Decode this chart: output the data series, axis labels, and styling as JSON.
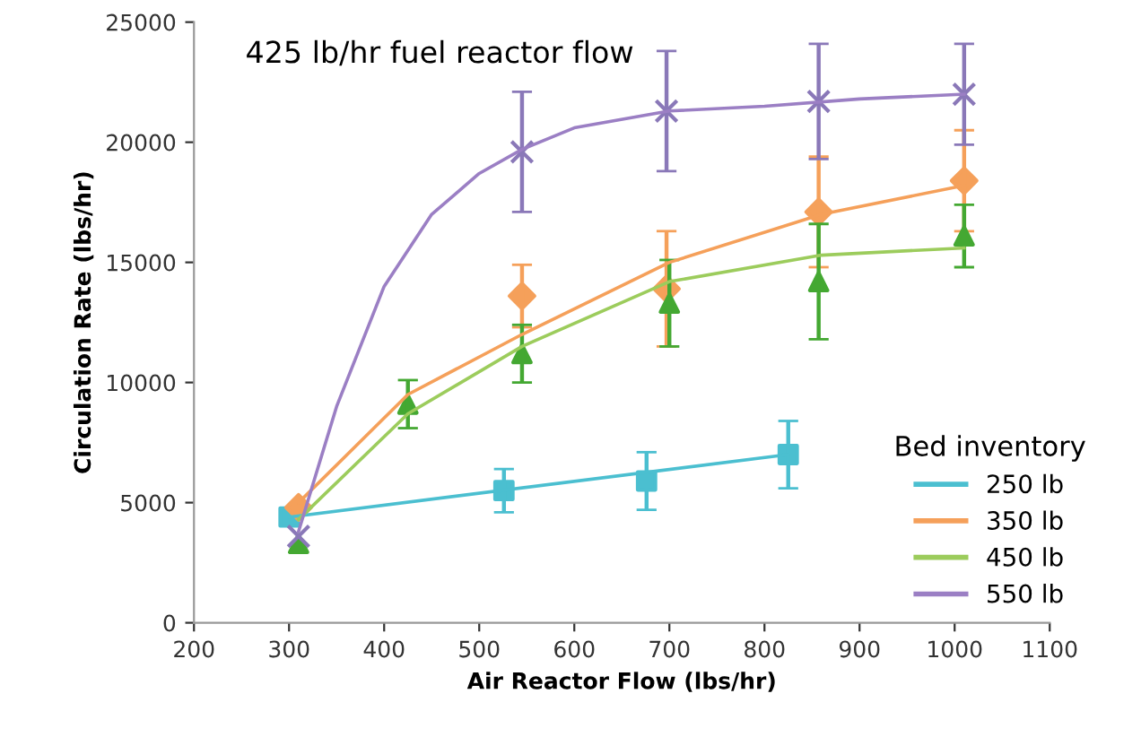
{
  "chart_data": {
    "type": "scatter",
    "title": "425 lb/hr fuel reactor flow",
    "xlabel": "Air Reactor Flow (lbs/hr)",
    "ylabel": "Circulation Rate (lbs/hr)",
    "legend_title": "Bed inventory",
    "legend": "bottom right",
    "grid": false,
    "xlim": [
      200,
      1100
    ],
    "xticks": [
      200,
      300,
      400,
      500,
      600,
      700,
      800,
      900,
      1000,
      1100
    ],
    "ylim": [
      0,
      25000
    ],
    "yticks": [
      0,
      5000,
      10000,
      15000,
      20000,
      25000
    ],
    "series": [
      {
        "marker": "square",
        "color": "#4bbfd0",
        "x": [
          300,
          526,
          676,
          825
        ],
        "values": [
          4400,
          5500,
          5900,
          7000
        ],
        "errors": [
          null,
          900,
          1200,
          1400
        ]
      },
      {
        "marker": "diamond",
        "color": "#f5a05a",
        "x": [
          310,
          545,
          697,
          857,
          1010
        ],
        "values": [
          4800,
          13600,
          13900,
          17100,
          18400
        ],
        "errors": [
          null,
          1300,
          2400,
          2300,
          2100
        ]
      },
      {
        "marker": "triangle",
        "color": "#44a832",
        "x": [
          310,
          425,
          545,
          700,
          857,
          1010
        ],
        "values": [
          3300,
          9100,
          11200,
          13300,
          14200,
          16100
        ],
        "errors": [
          null,
          1000,
          1200,
          1800,
          2400,
          1300
        ]
      },
      {
        "marker": "cross",
        "color": "#8a78b8",
        "x": [
          310,
          545,
          697,
          857,
          1010
        ],
        "values": [
          3600,
          19600,
          21300,
          21700,
          22000
        ],
        "errors": [
          null,
          2500,
          2500,
          2400,
          2100
        ]
      },
      {
        "type": "line",
        "name": "250 lb",
        "color": "#4bbfd0",
        "x": [
          300,
          825
        ],
        "values": [
          4400,
          7000
        ]
      },
      {
        "type": "line",
        "name": "350 lb",
        "color": "#f5a05a",
        "x": [
          310,
          425,
          545,
          700,
          860,
          1010
        ],
        "values": [
          5000,
          9500,
          12000,
          15000,
          17000,
          18200
        ]
      },
      {
        "type": "line",
        "name": "450 lb",
        "color": "#9ccc5c",
        "x": [
          310,
          425,
          545,
          700,
          860,
          1010
        ],
        "values": [
          4300,
          8700,
          11500,
          14200,
          15300,
          15600
        ]
      },
      {
        "type": "line",
        "name": "550 lb",
        "color": "#9b7fc4",
        "x": [
          310,
          350,
          400,
          450,
          500,
          545,
          600,
          700,
          800,
          900,
          1010
        ],
        "values": [
          3800,
          9000,
          14000,
          17000,
          18700,
          19700,
          20600,
          21300,
          21500,
          21800,
          22000
        ]
      }
    ]
  }
}
